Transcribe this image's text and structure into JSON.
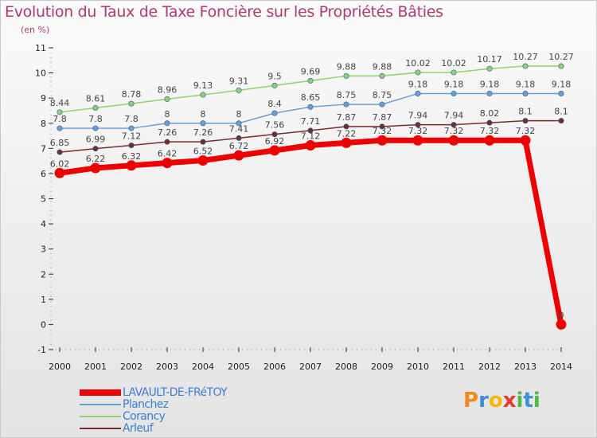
{
  "title": "Evolution du Taux de Taxe Foncière sur les Propriétés Bâties",
  "subtitle": "(en %)",
  "logo": [
    "P",
    "r",
    "o",
    "x",
    "i",
    "t",
    "i"
  ],
  "logo_colors": [
    "#f08a1e",
    "#3c8fd9",
    "#f5b800",
    "#e63b2e",
    "#4fb848",
    "#3c8fd9",
    "#4fb848"
  ],
  "chart_data": {
    "type": "line",
    "x": [
      2000,
      2001,
      2002,
      2003,
      2004,
      2005,
      2006,
      2007,
      2008,
      2009,
      2010,
      2011,
      2012,
      2013,
      2014
    ],
    "ylim": [
      -1,
      11
    ],
    "yticks": [
      -1,
      0,
      1,
      2,
      3,
      4,
      5,
      6,
      7,
      8,
      9,
      10,
      11
    ],
    "grid": false,
    "legend": "bottom-left",
    "series": [
      {
        "name": "Coranc̄y",
        "label": "Corancy",
        "color": "#8fd36b",
        "stroke": 1.5,
        "r": 3.2,
        "values": [
          8.44,
          8.61,
          8.78,
          8.96,
          9.13,
          9.31,
          9.5,
          9.69,
          9.88,
          9.88,
          10.02,
          10.02,
          10.17,
          10.27,
          10.27
        ],
        "labels": [
          "8.44",
          "8.61",
          "8.78",
          "8.96",
          "9.13",
          "9.31",
          "9.5",
          "9.69",
          "9.88",
          "9.88",
          "10.02",
          "10.02",
          "10.17",
          "10.27",
          "10.27"
        ]
      },
      {
        "name": "Planchez",
        "label": "Planchez",
        "color": "#6a9fd6",
        "stroke": 1.5,
        "r": 3.2,
        "values": [
          7.8,
          7.8,
          7.8,
          8,
          8,
          8,
          8.4,
          8.65,
          8.75,
          8.75,
          9.18,
          9.18,
          9.18,
          9.18,
          9.18
        ],
        "labels": [
          "7.8",
          "7.8",
          "7.8",
          "8",
          "8",
          "8",
          "8.4",
          "8.65",
          "8.75",
          "8.75",
          "9.18",
          "9.18",
          "9.18",
          "9.18",
          "9.18"
        ]
      },
      {
        "name": "Arleuf",
        "label": "Arleuf",
        "color": "#7a2a2a",
        "stroke": 1.5,
        "r": 3.2,
        "values": [
          6.85,
          6.99,
          7.12,
          7.26,
          7.26,
          7.41,
          7.56,
          7.71,
          7.87,
          7.87,
          7.94,
          7.94,
          8.02,
          8.1,
          8.1
        ],
        "labels": [
          "6.85",
          "6.99",
          "7.12",
          "7.26",
          "7.26",
          "7.41",
          "7.56",
          "7.71",
          "7.87",
          "7.87",
          "7.94",
          "7.94",
          "8.02",
          "8.1",
          "8.1"
        ]
      },
      {
        "name": "LAVAULT-DE-FRéTOY",
        "label": "LAVAULT-DE-FRéTOY",
        "color": "#ee0000",
        "stroke": 7,
        "r": 6.5,
        "values": [
          6.02,
          6.22,
          6.32,
          6.42,
          6.52,
          6.72,
          6.92,
          7.12,
          7.22,
          7.32,
          7.32,
          7.32,
          7.32,
          7.32,
          0
        ],
        "labels": [
          "6.02",
          "6.22",
          "6.32",
          "6.42",
          "6.52",
          "6.72",
          "6.92",
          "7.12",
          "7.22",
          "7.32",
          "7.32",
          "7.32",
          "7.32",
          "7.32",
          "0"
        ]
      }
    ]
  },
  "legend_order": [
    3,
    1,
    0,
    2
  ]
}
